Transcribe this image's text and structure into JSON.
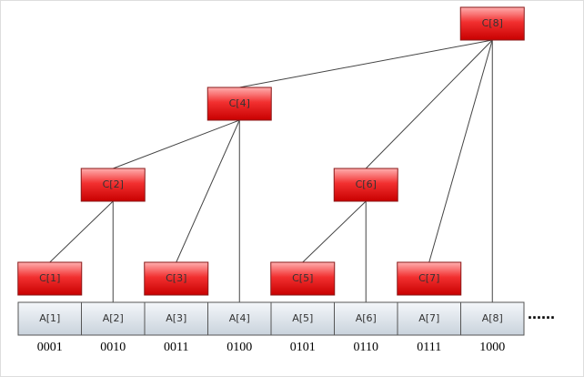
{
  "c_nodes": [
    {
      "label": "C[1]"
    },
    {
      "label": "C[2]"
    },
    {
      "label": "C[3]"
    },
    {
      "label": "C[4]"
    },
    {
      "label": "C[5]"
    },
    {
      "label": "C[6]"
    },
    {
      "label": "C[7]"
    },
    {
      "label": "C[8]"
    }
  ],
  "a_cells": [
    {
      "label": "A[1]",
      "bits": "0001"
    },
    {
      "label": "A[2]",
      "bits": "0010"
    },
    {
      "label": "A[3]",
      "bits": "0011"
    },
    {
      "label": "A[4]",
      "bits": "0100"
    },
    {
      "label": "A[5]",
      "bits": "0101"
    },
    {
      "label": "A[6]",
      "bits": "0110"
    },
    {
      "label": "A[7]",
      "bits": "0111"
    },
    {
      "label": "A[8]",
      "bits": "1000"
    }
  ],
  "ellipsis": "......"
}
